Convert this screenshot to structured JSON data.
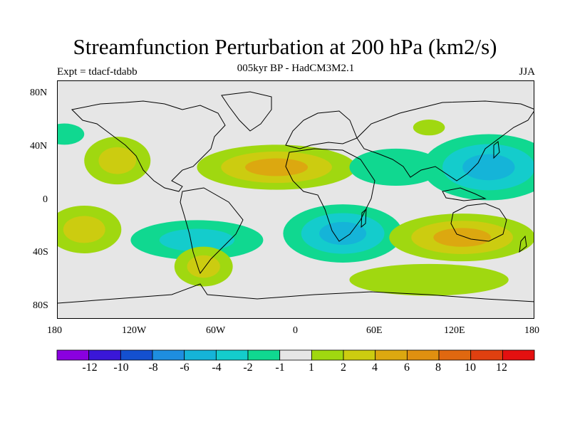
{
  "title": "Streamfunction Perturbation at 200 hPa (km2/s)",
  "subtitle": "005kyr BP - HadCM3M2.1",
  "left_label": "Expt = tdacf-tdabb",
  "right_label": "JJA",
  "map": {
    "land_color": "#e6e6e6",
    "lat_ticks": [
      "80N",
      "40N",
      "0",
      "40S",
      "80S"
    ],
    "lon_ticks": [
      "180",
      "120W",
      "60W",
      "0",
      "60E",
      "120E",
      "180"
    ]
  },
  "colorbar": {
    "colors": [
      "#8a00e0",
      "#3a17d8",
      "#1450d0",
      "#1e8ee0",
      "#15b4d8",
      "#14cccc",
      "#10d890",
      "#e6e6e6",
      "#a0d810",
      "#cccc10",
      "#dca810",
      "#e09010",
      "#e06810",
      "#e04010",
      "#e41010"
    ],
    "labels": [
      "-12",
      "-10",
      "-8",
      "-6",
      "-4",
      "-2",
      "-1",
      "1",
      "2",
      "4",
      "6",
      "8",
      "10",
      "12"
    ]
  },
  "chart_data": {
    "type": "heatmap",
    "title": "Streamfunction Perturbation at 200 hPa (km2/s)",
    "subtitle": "005kyr BP - HadCM3M2.1",
    "experiment": "Expt = tdacf-tdabb",
    "season": "JJA",
    "x_axis": {
      "range": [
        -180,
        180
      ],
      "ticks": [
        "180",
        "120W",
        "60W",
        "0",
        "60E",
        "120E",
        "180"
      ]
    },
    "y_axis": {
      "range": [
        -90,
        90
      ],
      "ticks": [
        "80N",
        "40N",
        "0",
        "40S",
        "80S"
      ]
    },
    "levels": [
      -12,
      -10,
      -8,
      -6,
      -4,
      -2,
      -1,
      1,
      2,
      4,
      6,
      8,
      10,
      12
    ],
    "anomalies": [
      {
        "name": "n-atlantic-africa-positive",
        "lon": -15,
        "lat": 25,
        "lon_radius": 60,
        "lat_radius": 17,
        "peaks": [
          1.5,
          3,
          5
        ]
      },
      {
        "name": "east-pacific-positive",
        "lon": -135,
        "lat": 30,
        "lon_radius": 25,
        "lat_radius": 18,
        "peaks": [
          1.5,
          3
        ]
      },
      {
        "name": "west-pacific-negative",
        "lon": 145,
        "lat": 25,
        "lon_radius": 50,
        "lat_radius": 25,
        "peaks": [
          -1.5,
          -3,
          -5
        ]
      },
      {
        "name": "south-asia-negative",
        "lon": 75,
        "lat": 25,
        "lon_radius": 35,
        "lat_radius": 14,
        "peaks": [
          -1.5
        ]
      },
      {
        "name": "central-asia-positive",
        "lon": 100,
        "lat": 55,
        "lon_radius": 12,
        "lat_radius": 6,
        "peaks": [
          1.5
        ]
      },
      {
        "name": "north-pacific-negative",
        "lon": -175,
        "lat": 50,
        "lon_radius": 15,
        "lat_radius": 8,
        "peaks": [
          -1.5
        ]
      },
      {
        "name": "south-atlantic-africa-negative",
        "lon": 35,
        "lat": -25,
        "lon_radius": 45,
        "lat_radius": 22,
        "peaks": [
          -1.5,
          -3,
          -5
        ]
      },
      {
        "name": "south-america-negative",
        "lon": -75,
        "lat": -30,
        "lon_radius": 50,
        "lat_radius": 15,
        "peaks": [
          -1.5,
          -3
        ]
      },
      {
        "name": "australia-positive",
        "lon": 125,
        "lat": -28,
        "lon_radius": 55,
        "lat_radius": 18,
        "peaks": [
          1.5,
          3,
          5
        ]
      },
      {
        "name": "south-pacific-positive",
        "lon": -160,
        "lat": -22,
        "lon_radius": 28,
        "lat_radius": 18,
        "peaks": [
          1.5,
          3
        ]
      },
      {
        "name": "patagonia-positive",
        "lon": -70,
        "lat": -50,
        "lon_radius": 22,
        "lat_radius": 15,
        "peaks": [
          1.5,
          3
        ]
      },
      {
        "name": "southern-ocean-positive",
        "lon": 100,
        "lat": -60,
        "lon_radius": 60,
        "lat_radius": 12,
        "peaks": [
          1.5
        ]
      }
    ]
  }
}
